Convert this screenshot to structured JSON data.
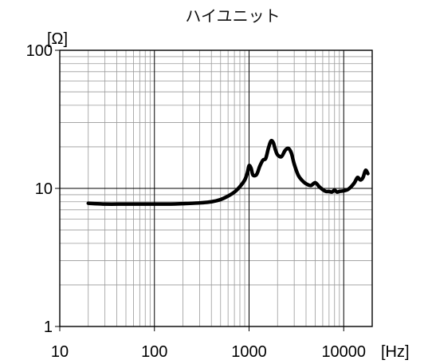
{
  "chart_data": {
    "type": "line",
    "title": "ハイユニット",
    "xunit": "[Hz]",
    "yunit": "[Ω]",
    "xscale": "log",
    "yscale": "log",
    "xlim": [
      10,
      20000
    ],
    "ylim": [
      1,
      100
    ],
    "xticks": [
      {
        "value": 10,
        "label": "10"
      },
      {
        "value": 100,
        "label": "100"
      },
      {
        "value": 1000,
        "label": "1000"
      },
      {
        "value": 10000,
        "label": "10000"
      }
    ],
    "yticks": [
      {
        "value": 1,
        "label": "1"
      },
      {
        "value": 10,
        "label": "10"
      },
      {
        "value": 100,
        "label": "100"
      }
    ],
    "grid": true,
    "legend": "none",
    "series": [
      {
        "color": "#000000",
        "x": [
          20,
          30,
          50,
          100,
          150,
          200,
          300,
          400,
          500,
          600,
          700,
          800,
          900,
          960,
          1000,
          1050,
          1100,
          1200,
          1300,
          1400,
          1500,
          1600,
          1700,
          1800,
          1900,
          2000,
          2200,
          2400,
          2600,
          2800,
          3000,
          3300,
          3600,
          4000,
          4500,
          5000,
          5500,
          6000,
          6500,
          7000,
          7500,
          8000,
          8500,
          9000,
          10000,
          11000,
          12000,
          13000,
          14000,
          15000,
          16000,
          17000,
          18000
        ],
        "y": [
          7.8,
          7.7,
          7.7,
          7.7,
          7.7,
          7.75,
          7.85,
          8.0,
          8.3,
          8.8,
          9.4,
          10.3,
          11.5,
          13.0,
          14.6,
          14.0,
          12.5,
          12.6,
          14.5,
          16.0,
          16.5,
          19.5,
          22.0,
          21.5,
          19.0,
          17.5,
          17.0,
          18.8,
          19.5,
          18.0,
          15.0,
          12.5,
          11.5,
          10.8,
          10.5,
          11.0,
          10.3,
          9.8,
          9.5,
          9.5,
          9.4,
          9.7,
          9.4,
          9.5,
          9.6,
          9.8,
          10.3,
          11.0,
          12.0,
          11.5,
          12.0,
          13.5,
          12.8
        ]
      }
    ]
  }
}
